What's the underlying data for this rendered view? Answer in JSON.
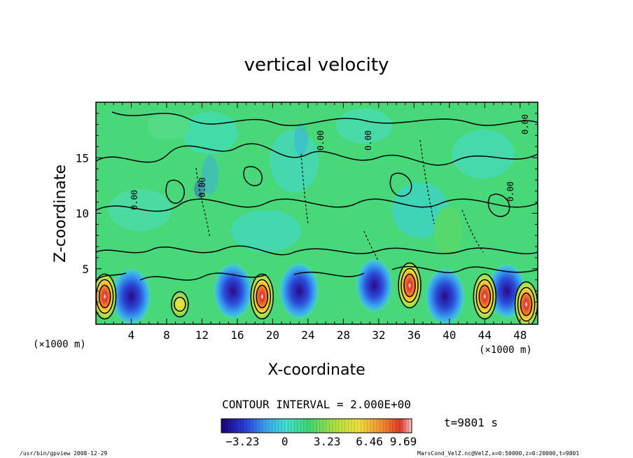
{
  "chart_data": {
    "type": "heatmap",
    "title": "vertical velocity",
    "xlabel": "X-coordinate",
    "ylabel": "Z-coordinate",
    "x_unit": "(×1000 m)",
    "x_unit_right": "(×1000 m)",
    "xlim": [
      0,
      50
    ],
    "ylim": [
      0,
      20
    ],
    "x_ticks": [
      "4",
      "8",
      "12",
      "16",
      "20",
      "24",
      "28",
      "32",
      "36",
      "40",
      "44",
      "48"
    ],
    "y_ticks": [
      "5",
      "10",
      "15"
    ],
    "contour_interval_text": "CONTOUR INTERVAL = 2.000E+00",
    "contour_labels": [
      "0.00",
      "0.00",
      "0.00",
      "0.00",
      "0.00",
      "0.00"
    ],
    "colorbar_ticks": [
      "−3.23",
      "0",
      "3.23",
      "6.46",
      "9.69"
    ],
    "colorbar_range": [
      -4.85,
      9.69
    ],
    "time_label": "t=9801 s",
    "footer_left": "/usr/bin/gpview   2008-12-29",
    "footer_right": "MarsCond_VelZ.nc@VelZ,x=0:50000,z=0:20000,t=9801",
    "updrafts": [
      {
        "x": 1.0,
        "z": 2.5,
        "value": 8
      },
      {
        "x": 9.5,
        "z": 1.8,
        "value": 5
      },
      {
        "x": 18.8,
        "z": 2.5,
        "value": 9.5
      },
      {
        "x": 35.5,
        "z": 3.5,
        "value": 9.69
      },
      {
        "x": 44.0,
        "z": 2.5,
        "value": 7
      },
      {
        "x": 48.7,
        "z": 1.8,
        "value": 9
      }
    ],
    "downdrafts": [
      {
        "x": 4.0,
        "z": 2.5,
        "value": -3.2
      },
      {
        "x": 15.5,
        "z": 3.0,
        "value": -3.0
      },
      {
        "x": 23.0,
        "z": 3.0,
        "value": -3.2
      },
      {
        "x": 31.5,
        "z": 3.5,
        "value": -2.5
      },
      {
        "x": 39.5,
        "z": 2.5,
        "value": -3.2
      },
      {
        "x": 46.5,
        "z": 3.0,
        "value": -2.8
      }
    ]
  }
}
